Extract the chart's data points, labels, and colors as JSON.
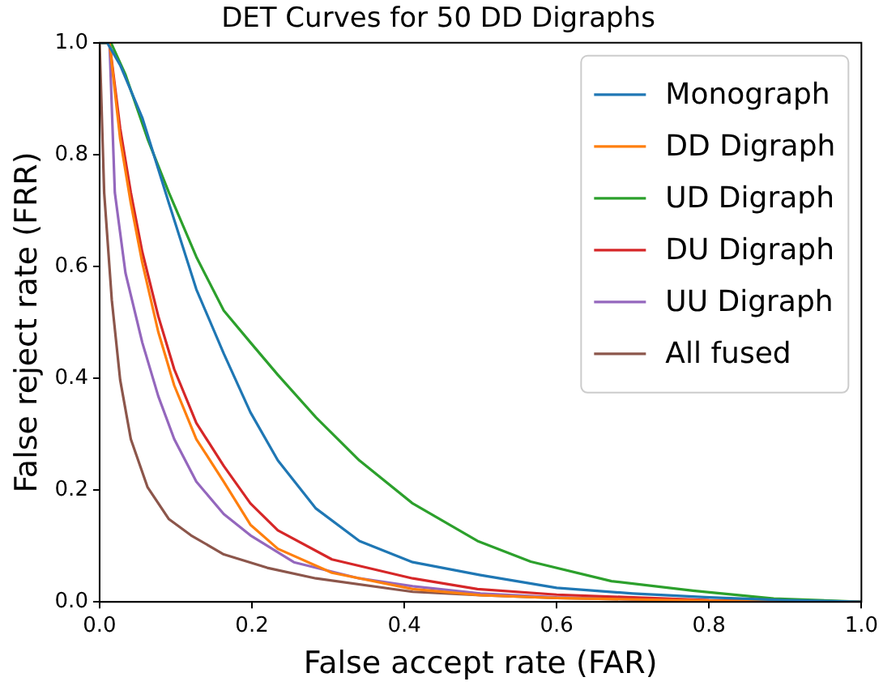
{
  "chart_data": {
    "type": "line",
    "title": "DET Curves for 50 DD Digraphs",
    "xlabel": "False accept rate (FAR)",
    "ylabel": "False reject rate (FRR)",
    "xlim": [
      0,
      1
    ],
    "ylim": [
      0,
      1
    ],
    "xticks": [
      {
        "value": 0,
        "label": "0.0"
      },
      0.2,
      0.4,
      0.6,
      0.8,
      {
        "value": 1,
        "label": "1.0"
      }
    ],
    "yticks": [
      {
        "value": 0,
        "label": "0.0"
      },
      0.2,
      0.4,
      0.6,
      0.8,
      {
        "value": 1,
        "label": "1.0"
      }
    ],
    "grid": false,
    "legend": "top right",
    "marker": "none",
    "line_style": "solid",
    "series": [
      {
        "name": "Monograph",
        "color": "#1f77b4",
        "x": [
          0,
          0.01,
          0.027,
          0.056,
          0.091,
          0.127,
          0.163,
          0.198,
          0.234,
          0.284,
          0.341,
          0.411,
          0.5,
          0.6,
          0.7,
          0.8,
          0.9,
          1
        ],
        "values": [
          1,
          1,
          0.96,
          0.866,
          0.713,
          0.559,
          0.444,
          0.339,
          0.253,
          0.167,
          0.109,
          0.071,
          0.048,
          0.025,
          0.015,
          0.008,
          0.003,
          0
        ]
      },
      {
        "name": "DD Digraph",
        "color": "#ff7f0e",
        "x": [
          0,
          0.013,
          0.027,
          0.041,
          0.056,
          0.077,
          0.098,
          0.127,
          0.163,
          0.198,
          0.234,
          0.305,
          0.411,
          0.5,
          0.6,
          0.8,
          1
        ],
        "values": [
          1,
          1,
          0.828,
          0.713,
          0.607,
          0.483,
          0.387,
          0.291,
          0.215,
          0.138,
          0.095,
          0.052,
          0.023,
          0.012,
          0.007,
          0.002,
          0
        ]
      },
      {
        "name": "UD Digraph",
        "color": "#2ca02c",
        "x": [
          0,
          0.015,
          0.034,
          0.063,
          0.091,
          0.127,
          0.163,
          0.198,
          0.234,
          0.284,
          0.341,
          0.411,
          0.496,
          0.566,
          0.672,
          0.779,
          0.885,
          1
        ],
        "values": [
          1,
          1,
          0.943,
          0.828,
          0.732,
          0.617,
          0.521,
          0.464,
          0.406,
          0.33,
          0.253,
          0.176,
          0.109,
          0.072,
          0.037,
          0.02,
          0.006,
          0
        ]
      },
      {
        "name": "DU Digraph",
        "color": "#d62728",
        "x": [
          0,
          0.013,
          0.027,
          0.041,
          0.056,
          0.077,
          0.098,
          0.127,
          0.163,
          0.198,
          0.234,
          0.305,
          0.411,
          0.496,
          0.6,
          0.8,
          1
        ],
        "values": [
          1,
          1,
          0.847,
          0.732,
          0.626,
          0.511,
          0.416,
          0.32,
          0.243,
          0.176,
          0.128,
          0.076,
          0.042,
          0.023,
          0.013,
          0.003,
          0
        ]
      },
      {
        "name": "UU Digraph",
        "color": "#9467bd",
        "x": [
          0,
          0.013,
          0.02,
          0.034,
          0.056,
          0.077,
          0.098,
          0.127,
          0.163,
          0.198,
          0.255,
          0.341,
          0.411,
          0.5,
          0.6,
          0.8,
          1
        ],
        "values": [
          1,
          1,
          0.732,
          0.588,
          0.464,
          0.368,
          0.291,
          0.215,
          0.157,
          0.119,
          0.071,
          0.042,
          0.028,
          0.015,
          0.008,
          0.002,
          0
        ]
      },
      {
        "name": "All fused",
        "color": "#8c564b",
        "x": [
          0,
          0.006,
          0.016,
          0.027,
          0.041,
          0.063,
          0.091,
          0.12,
          0.163,
          0.22,
          0.284,
          0.411,
          0.5,
          0.6,
          0.8,
          1
        ],
        "values": [
          1,
          0.732,
          0.54,
          0.397,
          0.291,
          0.205,
          0.148,
          0.119,
          0.085,
          0.061,
          0.042,
          0.018,
          0.012,
          0.007,
          0.002,
          0
        ]
      }
    ]
  }
}
